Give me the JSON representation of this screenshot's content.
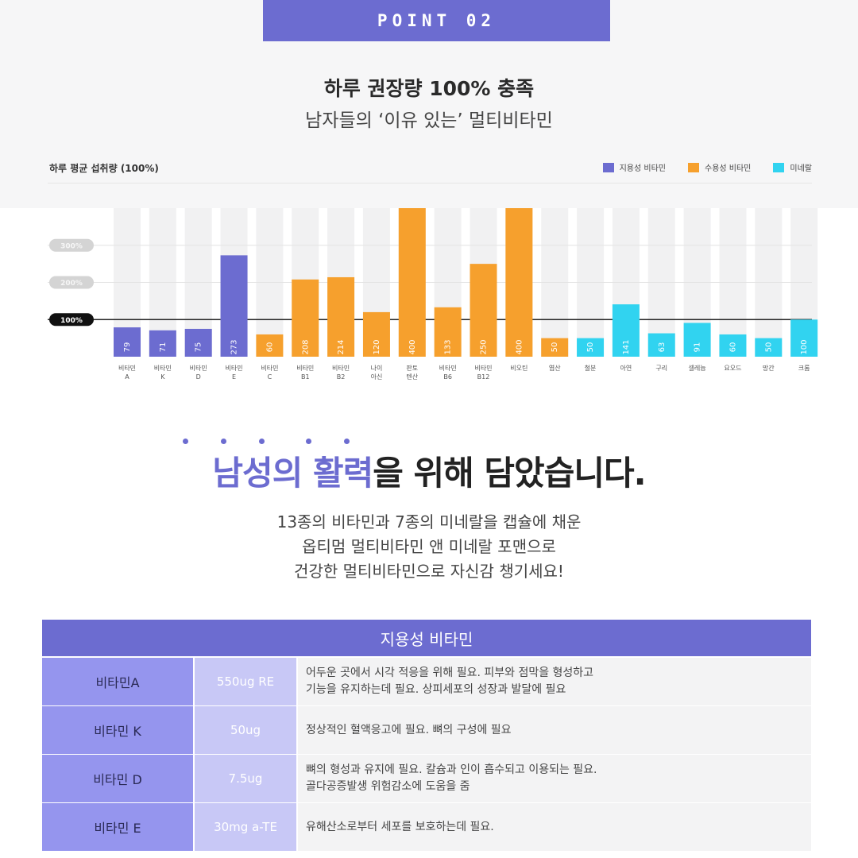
{
  "header": {
    "point_label": "POINT 02",
    "headline": "하루 권장량 100% 충족",
    "subheadline": "남자들의 ‘이유 있는’ 멀티비타민"
  },
  "colors": {
    "fat_soluble": "#6c6cd0",
    "water_soluble": "#f6a02d",
    "mineral": "#31d3f0"
  },
  "chart_data": {
    "type": "bar",
    "title": "하루 평균 섭취량 (100%)",
    "legend": [
      {
        "name": "지용성 비타민",
        "color": "#6c6cd0"
      },
      {
        "name": "수용성 비타민",
        "color": "#f6a02d"
      },
      {
        "name": "미네랄",
        "color": "#31d3f0"
      }
    ],
    "legend_position": "top-right",
    "yticks": [
      "100%",
      "200%",
      "300%"
    ],
    "ylim": [
      0,
      400
    ],
    "grid": true,
    "bars": [
      {
        "label": [
          "비타민",
          "A"
        ],
        "value": 79,
        "group": "fat_soluble"
      },
      {
        "label": [
          "비타민",
          "K"
        ],
        "value": 71,
        "group": "fat_soluble"
      },
      {
        "label": [
          "비타민",
          "D"
        ],
        "value": 75,
        "group": "fat_soluble"
      },
      {
        "label": [
          "비타민",
          "E"
        ],
        "value": 273,
        "group": "fat_soluble"
      },
      {
        "label": [
          "비타민",
          "C"
        ],
        "value": 60,
        "group": "water_soluble"
      },
      {
        "label": [
          "비타민",
          "B1"
        ],
        "value": 208,
        "group": "water_soluble"
      },
      {
        "label": [
          "비타민",
          "B2"
        ],
        "value": 214,
        "group": "water_soluble"
      },
      {
        "label": [
          "나이",
          "아신"
        ],
        "value": 120,
        "group": "water_soluble"
      },
      {
        "label": [
          "판토",
          "텐산"
        ],
        "value": 400,
        "group": "water_soluble"
      },
      {
        "label": [
          "비타민",
          "B6"
        ],
        "value": 133,
        "group": "water_soluble"
      },
      {
        "label": [
          "비타민",
          "B12"
        ],
        "value": 250,
        "group": "water_soluble"
      },
      {
        "label": [
          "비오틴"
        ],
        "value": 400,
        "group": "water_soluble"
      },
      {
        "label": [
          "엽산"
        ],
        "value": 50,
        "group": "water_soluble"
      },
      {
        "label": [
          "철분"
        ],
        "value": 50,
        "group": "mineral"
      },
      {
        "label": [
          "아연"
        ],
        "value": 141,
        "group": "mineral"
      },
      {
        "label": [
          "구리"
        ],
        "value": 63,
        "group": "mineral"
      },
      {
        "label": [
          "셀레늄"
        ],
        "value": 91,
        "group": "mineral"
      },
      {
        "label": [
          "요오드"
        ],
        "value": 60,
        "group": "mineral"
      },
      {
        "label": [
          "망간"
        ],
        "value": 50,
        "group": "mineral"
      },
      {
        "label": [
          "크롬"
        ],
        "value": 100,
        "group": "mineral"
      }
    ]
  },
  "tagline": {
    "highlight": "남성의 활력",
    "rest": "을 위해 담았습니다."
  },
  "description": {
    "line1": "13종의 비타민과 7종의 미네랄을 캡슐에 채운",
    "line2": "옵티멈 멀티비타민 앤 미네랄 포맨으로",
    "line3": "건강한 멀티비타민으로 자신감 챙기세요!"
  },
  "table": {
    "title": "지용성 비타민",
    "rows": [
      {
        "name": "비타민A",
        "amount": "550ug RE",
        "desc1": "어두운 곳에서 시각 적응을 위해 필요. 피부와 점막을 형성하고",
        "desc2": "기능을 유지하는데 필요. 상피세포의 성장과 발달에 필요"
      },
      {
        "name": "비타민 K",
        "amount": "50ug",
        "desc1": "정상적인 혈액응고에 필요. 뼈의 구성에 필요",
        "desc2": ""
      },
      {
        "name": "비타민 D",
        "amount": "7.5ug",
        "desc1": "뼈의 형성과 유지에 필요. 칼슘과 인이 흡수되고 이용되는 필요.",
        "desc2": "골다공증발생 위험감소에 도움을 줌"
      },
      {
        "name": "비타민 E",
        "amount": "30mg a-TE",
        "desc1": "유해산소로부터 세포를 보호하는데 필요.",
        "desc2": ""
      }
    ]
  }
}
